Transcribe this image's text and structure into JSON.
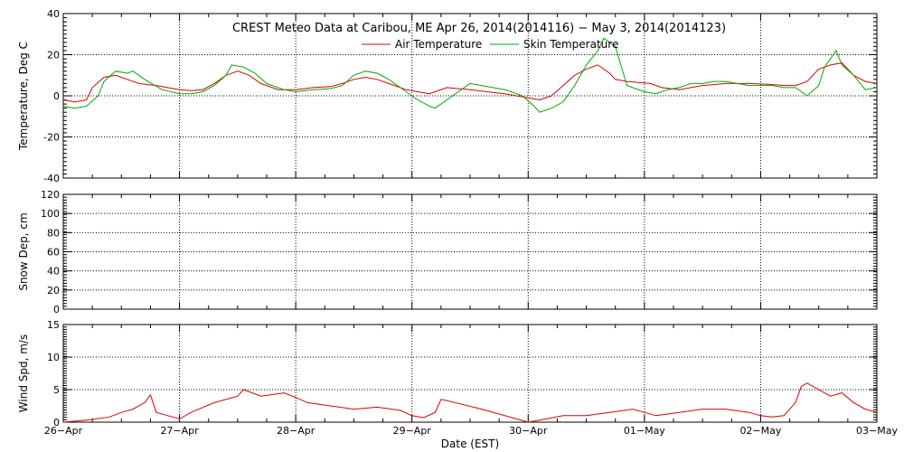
{
  "title": "CREST Meteo Data at Caribou, ME   Apr 26, 2014(2014116) − May  3, 2014(2014123)",
  "xlabel": "Date (EST)",
  "x_tick_labels": [
    "26−Apr",
    "27−Apr",
    "28−Apr",
    "29−Apr",
    "30−Apr",
    "01−May",
    "02−May",
    "03−May"
  ],
  "colors": {
    "air": "#dd0000",
    "skin": "#00aa00",
    "wind": "#dd0000",
    "grid": "#000000"
  },
  "chart_data": [
    {
      "type": "line",
      "ylabel": "Temperature, Deg C",
      "ylim": [
        -40,
        40
      ],
      "yticks": [
        -40,
        -20,
        0,
        20,
        40
      ],
      "xlim": [
        0,
        7
      ],
      "grid": true,
      "legend_position": "top-center",
      "series": [
        {
          "name": "Air Temperature",
          "color": "#dd0000",
          "x": [
            0,
            0.1,
            0.2,
            0.25,
            0.35,
            0.45,
            0.55,
            0.65,
            0.8,
            1.0,
            1.1,
            1.2,
            1.3,
            1.4,
            1.5,
            1.6,
            1.7,
            1.85,
            2.0,
            2.15,
            2.3,
            2.4,
            2.5,
            2.6,
            2.7,
            2.8,
            2.95,
            3.05,
            3.15,
            3.3,
            3.5,
            3.8,
            4.0,
            4.1,
            4.2,
            4.3,
            4.4,
            4.5,
            4.6,
            4.7,
            4.75,
            4.85,
            4.95,
            5.05,
            5.15,
            5.3,
            5.5,
            5.7,
            5.9,
            6.1,
            6.2,
            6.3,
            6.4,
            6.5,
            6.6,
            6.7,
            6.8,
            6.9,
            7.0
          ],
          "y": [
            -2,
            -3,
            -2,
            4,
            9,
            10,
            8,
            6,
            5,
            3,
            2.5,
            3,
            6,
            10,
            12,
            10,
            6,
            3,
            3,
            4,
            4.5,
            6,
            8,
            9,
            8,
            6,
            3,
            2,
            1,
            4,
            3,
            1,
            -1,
            -2,
            0,
            5,
            10,
            13,
            15,
            11,
            8,
            7,
            6.5,
            6,
            4,
            3,
            5,
            6,
            6,
            5.5,
            5,
            5,
            7,
            13,
            15,
            16,
            10,
            7,
            6
          ]
        },
        {
          "name": "Skin Temperature",
          "color": "#00aa00",
          "x": [
            0,
            0.1,
            0.2,
            0.3,
            0.35,
            0.45,
            0.55,
            0.6,
            0.7,
            0.85,
            1.0,
            1.1,
            1.2,
            1.3,
            1.4,
            1.45,
            1.55,
            1.65,
            1.75,
            1.9,
            2.0,
            2.15,
            2.3,
            2.4,
            2.5,
            2.6,
            2.7,
            2.8,
            2.9,
            3.0,
            3.05,
            3.15,
            3.2,
            3.3,
            3.5,
            3.8,
            3.95,
            4.05,
            4.1,
            4.2,
            4.3,
            4.4,
            4.5,
            4.6,
            4.65,
            4.7,
            4.75,
            4.85,
            5.0,
            5.1,
            5.2,
            5.3,
            5.4,
            5.5,
            5.6,
            5.7,
            5.8,
            5.9,
            6.0,
            6.1,
            6.2,
            6.3,
            6.4,
            6.5,
            6.55,
            6.6,
            6.65,
            6.7,
            6.8,
            6.9,
            7.0
          ],
          "y": [
            -5,
            -6,
            -5,
            0,
            7,
            12,
            11,
            12,
            8,
            3,
            1,
            1,
            2,
            5,
            10,
            15,
            14,
            11,
            6,
            3,
            2,
            3,
            3.5,
            5,
            10,
            12,
            11,
            8,
            4,
            0,
            -2,
            -5,
            -6,
            -2,
            6,
            3,
            0,
            -5,
            -8,
            -6,
            -3,
            5,
            15,
            22,
            28,
            26,
            24,
            5,
            2,
            1,
            3,
            4,
            6,
            6,
            7,
            7,
            6,
            5,
            5,
            5,
            4,
            4,
            0,
            5,
            14,
            18,
            22,
            15,
            10,
            3,
            4
          ]
        }
      ]
    },
    {
      "type": "line",
      "ylabel": "Snow Dep, cm",
      "ylim": [
        0,
        120
      ],
      "yticks": [
        0,
        20,
        40,
        60,
        80,
        100,
        120
      ],
      "xlim": [
        0,
        7
      ],
      "grid": true,
      "series": []
    },
    {
      "type": "line",
      "ylabel": "Wind Spd, m/s",
      "ylim": [
        0,
        15
      ],
      "yticks": [
        0,
        5,
        10,
        15
      ],
      "xlim": [
        0,
        7
      ],
      "grid": true,
      "series": [
        {
          "color": "#dd0000",
          "x": [
            0,
            0.2,
            0.4,
            0.5,
            0.6,
            0.7,
            0.75,
            0.8,
            0.9,
            1.0,
            1.1,
            1.3,
            1.5,
            1.55,
            1.7,
            1.9,
            2.0,
            2.1,
            2.3,
            2.5,
            2.7,
            2.9,
            3.0,
            3.1,
            3.2,
            3.25,
            3.3,
            3.6,
            3.9,
            4.0,
            4.1,
            4.3,
            4.5,
            4.7,
            4.9,
            5.0,
            5.1,
            5.3,
            5.5,
            5.7,
            5.9,
            6.0,
            6.1,
            6.2,
            6.3,
            6.35,
            6.4,
            6.5,
            6.6,
            6.7,
            6.8,
            6.9,
            7.0
          ],
          "y": [
            0,
            0.3,
            0.8,
            1.5,
            2,
            3,
            4.2,
            1.5,
            1,
            0.5,
            1.5,
            3,
            4,
            5,
            4,
            4.5,
            3.8,
            3,
            2.5,
            2,
            2.3,
            1.8,
            1,
            0.7,
            1.5,
            3.5,
            3.3,
            2,
            0.5,
            0,
            0.3,
            1,
            1,
            1.5,
            2,
            1.5,
            1,
            1.5,
            2,
            2,
            1.5,
            1,
            0.8,
            1,
            3,
            5.5,
            6,
            5,
            4,
            4.5,
            3,
            2,
            1.5
          ]
        }
      ]
    }
  ]
}
